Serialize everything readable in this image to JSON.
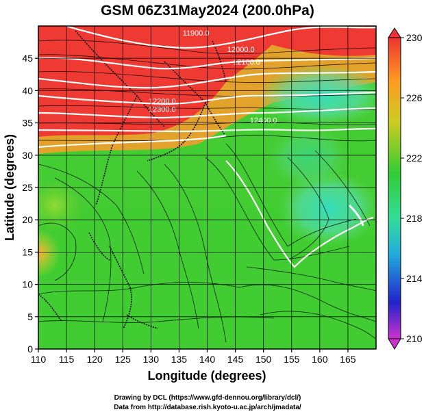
{
  "chart_data": {
    "type": "heatmap",
    "title": "GSM 06Z31May2024 (200.0hPa)",
    "xlabel": "Longitude (degrees)",
    "ylabel": "Latitude  (degrees)",
    "xlim": [
      110,
      170
    ],
    "ylim": [
      0,
      50
    ],
    "x_ticks": [
      110,
      115,
      120,
      125,
      130,
      135,
      140,
      145,
      150,
      155,
      160,
      165
    ],
    "y_ticks": [
      0,
      5,
      10,
      15,
      20,
      25,
      30,
      35,
      40,
      45
    ],
    "grid": true,
    "colorbar": {
      "range": [
        210,
        230
      ],
      "ticks": [
        230,
        226,
        222,
        218,
        214,
        210
      ],
      "colors": [
        "#cc33cc",
        "#2222cc",
        "#22aadd",
        "#33dd99",
        "#33cc33",
        "#cccc22",
        "#ff9922",
        "#ee3333"
      ]
    },
    "field_samples": [
      {
        "lon": 120,
        "lat": 45,
        "value": 229
      },
      {
        "lon": 135,
        "lat": 45,
        "value": 228
      },
      {
        "lon": 160,
        "lat": 47,
        "value": 228
      },
      {
        "lon": 125,
        "lat": 38,
        "value": 228
      },
      {
        "lon": 150,
        "lat": 40,
        "value": 223
      },
      {
        "lon": 158,
        "lat": 40,
        "value": 220
      },
      {
        "lon": 130,
        "lat": 20,
        "value": 223
      },
      {
        "lon": 160,
        "lat": 22,
        "value": 219
      },
      {
        "lon": 140,
        "lat": 8,
        "value": 223
      },
      {
        "lon": 112,
        "lat": 18,
        "value": 226
      }
    ],
    "contour_labels": [
      {
        "text": "11900.0",
        "lon": 138,
        "lat": 48.5
      },
      {
        "text": "12000.0",
        "lon": 146,
        "lat": 46
      },
      {
        "text": "12100.0",
        "lon": 147,
        "lat": 44
      },
      {
        "text": "12200.0",
        "lon": 132,
        "lat": 38
      },
      {
        "text": "12300.0",
        "lon": 132,
        "lat": 36.7
      },
      {
        "text": "12400.0",
        "lon": 150,
        "lat": 35
      }
    ]
  },
  "footer": {
    "credit_line1": "Drawing by DCL (https://www.gfd-dennou.org/library/dcl/)",
    "credit_line2": "Data from http://database.rish.kyoto-u.ac.jp/arch/jmadata/"
  }
}
